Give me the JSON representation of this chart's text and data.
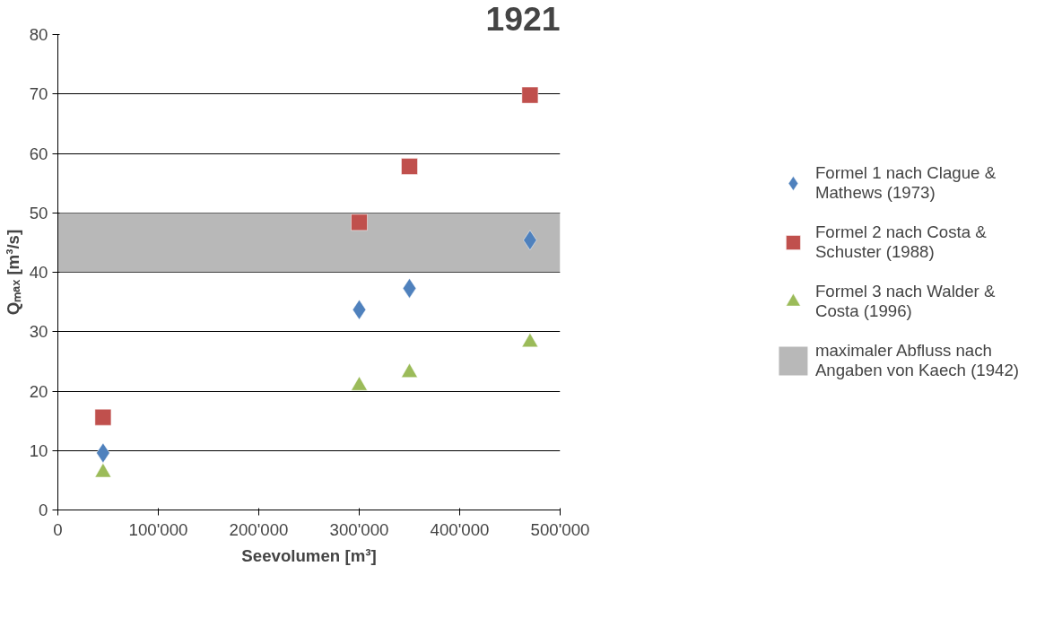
{
  "chart_data": {
    "type": "scatter",
    "title": "1921",
    "xlabel": "Seevolumen [m³]",
    "ylabel": "Qₘₐₓ [m³/s]",
    "xlim": [
      0,
      500000
    ],
    "ylim": [
      0,
      80
    ],
    "xticks": [
      {
        "value": 0,
        "label": "0"
      },
      {
        "value": 100000,
        "label": "100'000"
      },
      {
        "value": 200000,
        "label": "200'000"
      },
      {
        "value": 300000,
        "label": "300'000"
      },
      {
        "value": 400000,
        "label": "400'000"
      },
      {
        "value": 500000,
        "label": "500'000"
      }
    ],
    "yticks": [
      0,
      10,
      20,
      30,
      40,
      50,
      60,
      70,
      80
    ],
    "grid": "y",
    "legend": "right",
    "series": [
      {
        "name": "Formel 1 nach Clague & Mathews (1973)",
        "color": "#4f81bd",
        "marker": "diamond",
        "x": [
          45000,
          300000,
          350000,
          470000
        ],
        "values": [
          9.6,
          33.7,
          37.3,
          45.4
        ]
      },
      {
        "name": "Formel 2 nach Costa & Schuster (1988)",
        "color": "#c0504d",
        "marker": "square",
        "x": [
          45000,
          300000,
          350000,
          470000
        ],
        "values": [
          15.6,
          48.4,
          57.8,
          69.8
        ]
      },
      {
        "name": "Formel 3 nach Walder & Costa (1996)",
        "color": "#9bbb59",
        "marker": "triangle",
        "x": [
          45000,
          300000,
          350000,
          470000
        ],
        "values": [
          6.3,
          20.9,
          23.1,
          28.2
        ]
      }
    ],
    "bands": [
      {
        "axis": "y",
        "from": 40,
        "to": 50,
        "label": "maximaler Abfluss nach Angaben von Kaech (1942)",
        "color": "#a6a6a6"
      }
    ]
  }
}
